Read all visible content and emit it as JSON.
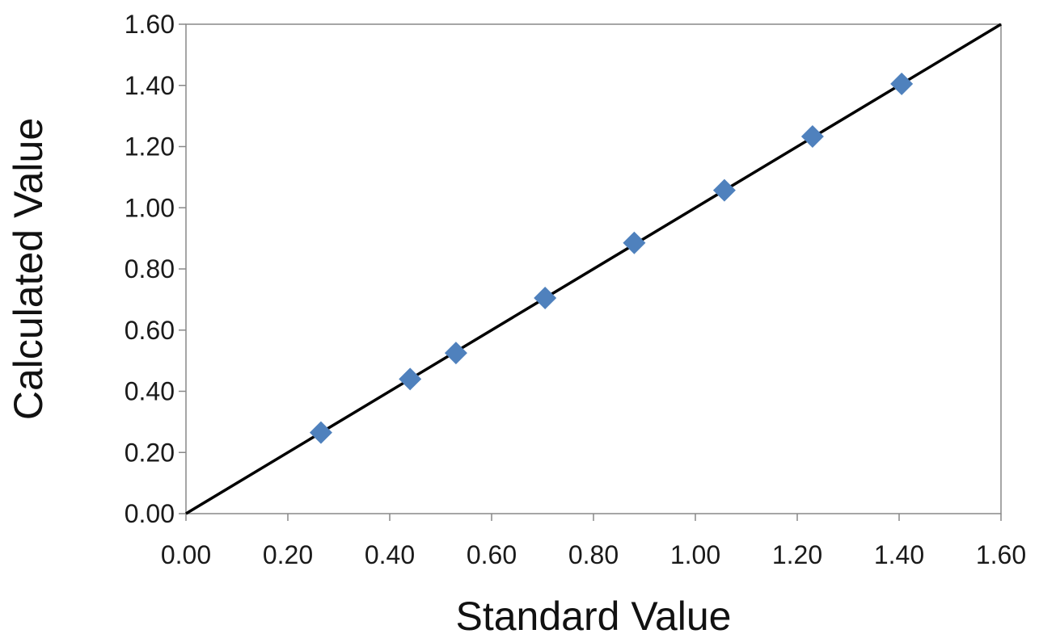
{
  "chart_data": {
    "type": "scatter",
    "title": "",
    "xlabel": "Standard Value",
    "ylabel": "Calculated Value",
    "xlim": [
      0,
      1.6
    ],
    "ylim": [
      0,
      1.6
    ],
    "x_ticks": [
      "0.00",
      "0.20",
      "0.40",
      "0.60",
      "0.80",
      "1.00",
      "1.20",
      "1.40",
      "1.60"
    ],
    "y_ticks": [
      "0.00",
      "0.20",
      "0.40",
      "0.60",
      "0.80",
      "1.00",
      "1.20",
      "1.40",
      "1.60"
    ],
    "grid": false,
    "legend": "none",
    "series": [
      {
        "marker": "diamond",
        "color": "#4f81bd",
        "x": [
          0.265,
          0.44,
          0.53,
          0.705,
          0.88,
          1.057,
          1.23,
          1.405
        ],
        "y": [
          0.265,
          0.44,
          0.525,
          0.705,
          0.885,
          1.057,
          1.233,
          1.405
        ]
      }
    ],
    "reference_line": {
      "type": "line",
      "color": "#000000",
      "x": [
        0,
        1.6
      ],
      "y": [
        0,
        1.6
      ]
    }
  }
}
